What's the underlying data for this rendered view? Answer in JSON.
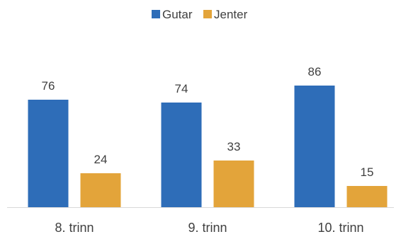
{
  "chart_data": {
    "type": "bar",
    "title": "",
    "xlabel": "",
    "ylabel": "",
    "categories": [
      "8. trinn",
      "9. trinn",
      "10. trinn"
    ],
    "series": [
      {
        "name": "Gutar",
        "color": "#2E6DB8",
        "values": [
          76,
          74,
          86
        ]
      },
      {
        "name": "Jenter",
        "color": "#E3A43A",
        "values": [
          24,
          33,
          15
        ]
      }
    ],
    "ylim": [
      0,
      100
    ],
    "grid": false,
    "legend_position": "top-center",
    "data_labels": true
  },
  "colors": {
    "axis": "#D9D9D9",
    "text": "#404040"
  }
}
